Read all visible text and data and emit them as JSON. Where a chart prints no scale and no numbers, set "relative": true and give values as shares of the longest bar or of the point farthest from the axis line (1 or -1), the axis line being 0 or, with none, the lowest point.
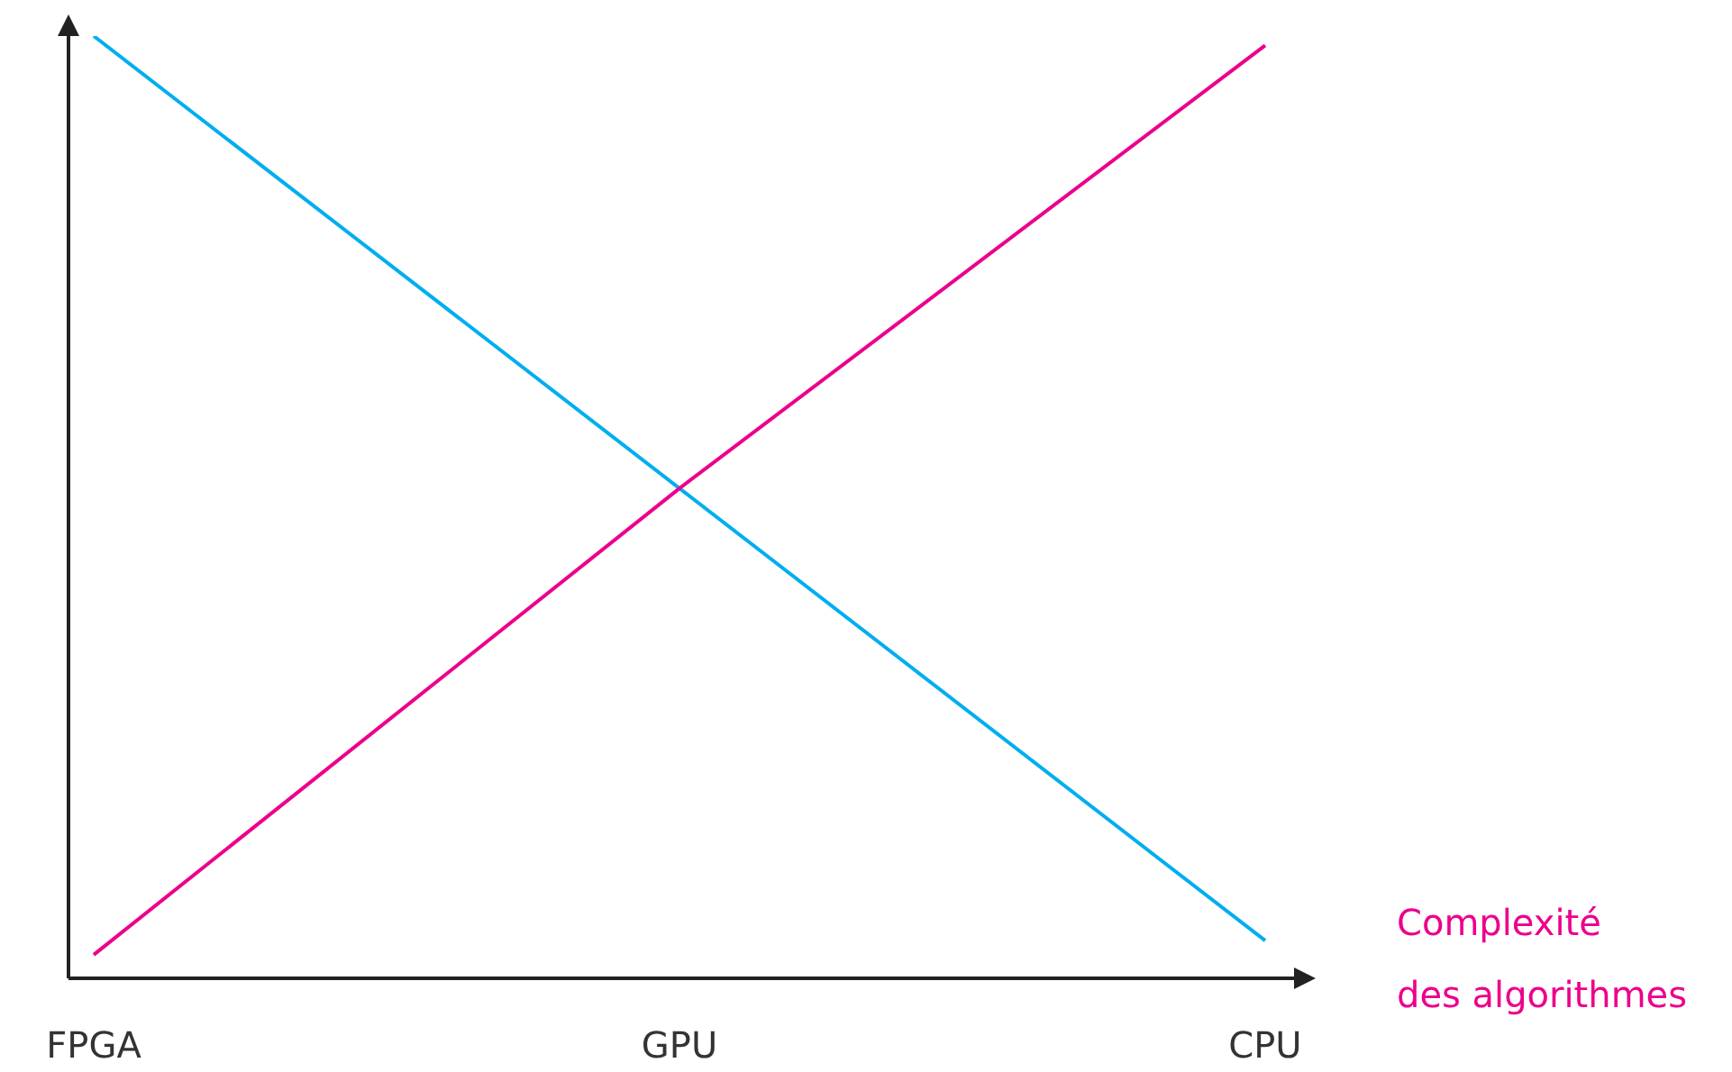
{
  "chart_data": {
    "type": "line",
    "relative": true,
    "categories": [
      "FPGA",
      "GPU",
      "CPU"
    ],
    "series": [
      {
        "color": "#00aeef",
        "values": [
          1,
          0.52,
          0.04
        ]
      },
      {
        "name": "Complexité des algorithmes",
        "color": "#ec008c",
        "values": [
          0.025,
          0.52,
          0.99
        ]
      }
    ],
    "marker": "none",
    "line_style": "solid"
  }
}
